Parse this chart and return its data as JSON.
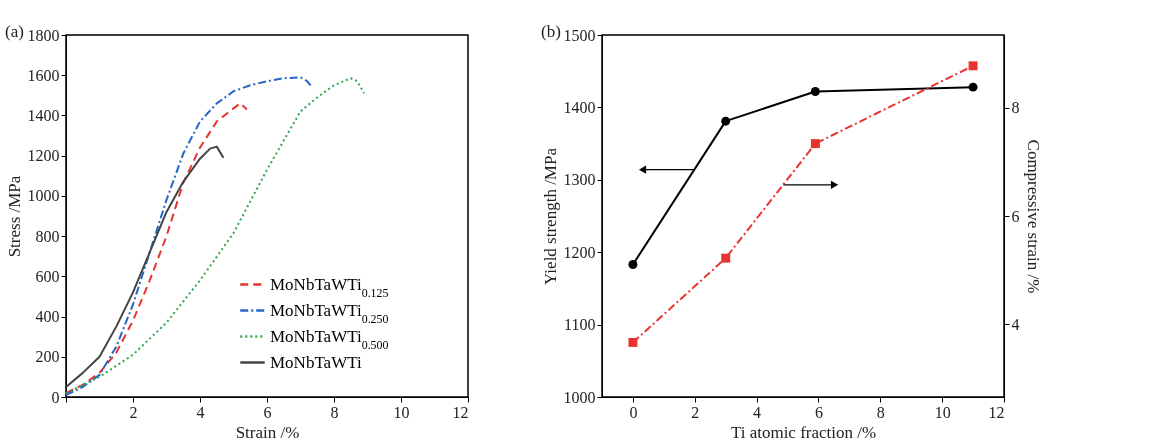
{
  "chart_data": [
    {
      "type": "line",
      "title": "(a)",
      "xlabel": "Strain /%",
      "ylabel": "Stress /MPa",
      "xlim": [
        0,
        12
      ],
      "ylim": [
        0,
        1800
      ],
      "xticks": [
        {
          "value": 0,
          "label": null
        },
        2,
        4,
        6,
        8,
        10,
        12
      ],
      "yticks": [
        0,
        200,
        400,
        600,
        800,
        1000,
        1200,
        1400,
        1600,
        1800
      ],
      "grid": false,
      "legend": "bottom right",
      "marker": "none",
      "series": [
        {
          "name": "MoNbTaWTi$_{0.125}$",
          "color": "#e8332f",
          "line_style": "dashed",
          "x": [
            0,
            0.5,
            1,
            1.5,
            2,
            2.5,
            3,
            3.5,
            4,
            4.5,
            5,
            5.2,
            5.4
          ],
          "values": [
            20,
            60,
            120,
            220,
            380,
            580,
            800,
            1065,
            1240,
            1370,
            1435,
            1460,
            1430
          ]
        },
        {
          "name": "MoNbTaWTi$_{0.250}$",
          "color": "#2466c7",
          "line_style": "dashdot",
          "x": [
            0,
            0.5,
            1,
            1.5,
            2,
            2.5,
            3,
            3.5,
            4,
            4.5,
            5,
            5.5,
            6,
            6.5,
            7,
            7.2,
            7.3
          ],
          "values": [
            10,
            50,
            110,
            250,
            460,
            720,
            980,
            1210,
            1370,
            1460,
            1520,
            1550,
            1570,
            1585,
            1590,
            1570,
            1550
          ]
        },
        {
          "name": "MoNbTaWTi$_{0.500}$",
          "color": "#2fa84f",
          "line_style": "dotted",
          "x": [
            0,
            1,
            2,
            3,
            4,
            5,
            6,
            7,
            7.5,
            8,
            8.5,
            8.7,
            8.9
          ],
          "values": [
            20,
            100,
            210,
            370,
            580,
            815,
            1130,
            1420,
            1490,
            1550,
            1585,
            1570,
            1510
          ]
        },
        {
          "name": "MoNbTaWTi",
          "color": "#444444",
          "line_style": "solid",
          "x": [
            0,
            0.5,
            1,
            1.5,
            2,
            2.5,
            3,
            3.5,
            4,
            4.3,
            4.5,
            4.7
          ],
          "values": [
            50,
            120,
            200,
            350,
            520,
            720,
            920,
            1070,
            1185,
            1235,
            1245,
            1190
          ]
        }
      ]
    },
    {
      "type": "line",
      "title": "(b)",
      "xlabel": "Ti atomic fraction /%",
      "ylabel": "Yield strength /MPa",
      "y2label": "Compressive strain /%",
      "xlim": [
        -1,
        12
      ],
      "ylim": [
        1000,
        1500
      ],
      "y2lim": [
        2.65,
        9.35
      ],
      "xticks": [
        0,
        2,
        4,
        6,
        8,
        10,
        12
      ],
      "yticks": [
        1000,
        1100,
        1200,
        1300,
        1400,
        1500
      ],
      "y2ticks": [
        4,
        6,
        8
      ],
      "grid": false,
      "legend": false,
      "series": [
        {
          "color": "#000000",
          "marker": "circle",
          "line_style": "solid",
          "x": [
            0,
            3,
            5.9,
            11
          ],
          "values": [
            1183,
            1381,
            1422,
            1428
          ]
        },
        {
          "color": "#e8332f",
          "marker": "square",
          "line_style": "dashdot",
          "axis": "y2",
          "x": [
            0,
            3,
            5.9,
            11
          ],
          "values": [
            3.66,
            5.22,
            7.34,
            8.78
          ]
        }
      ]
    }
  ]
}
